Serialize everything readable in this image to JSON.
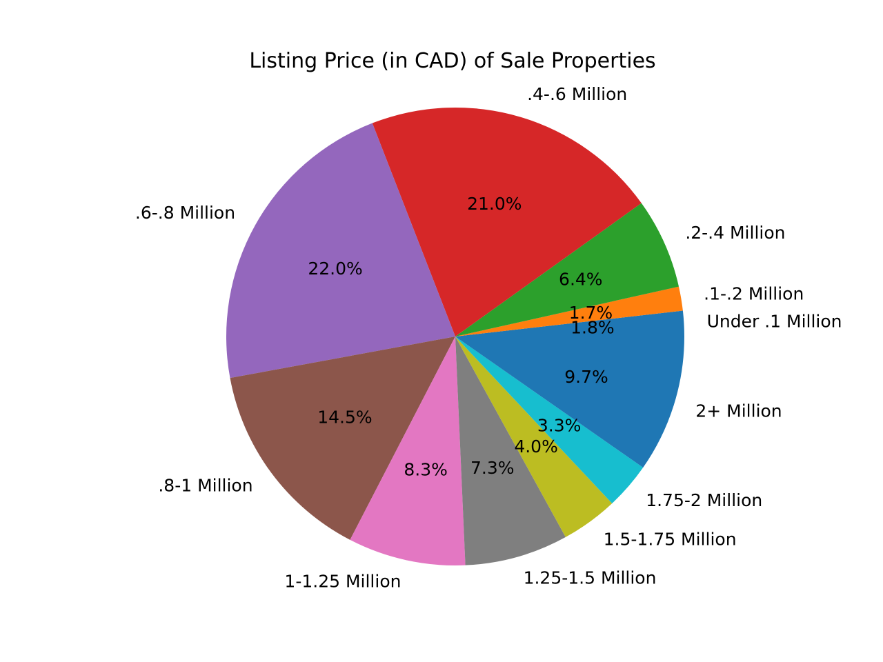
{
  "chart_data": {
    "type": "pie",
    "title": "Listing Price (in CAD) of Sale Properties",
    "start_angle_deg": 0,
    "direction": "counterclockwise",
    "slices": [
      {
        "label": "Under .1 Million",
        "value": 1.8,
        "pct_text": "1.8%",
        "color": "#1f77b4"
      },
      {
        "label": ".1-.2 Million",
        "value": 1.7,
        "pct_text": "1.7%",
        "color": "#ff7f0e"
      },
      {
        "label": ".2-.4 Million",
        "value": 6.4,
        "pct_text": "6.4%",
        "color": "#2ca02c"
      },
      {
        "label": ".4-.6 Million",
        "value": 21.0,
        "pct_text": "21.0%",
        "color": "#d62728"
      },
      {
        "label": ".6-.8 Million",
        "value": 22.0,
        "pct_text": "22.0%",
        "color": "#9467bd"
      },
      {
        "label": ".8-1 Million",
        "value": 14.5,
        "pct_text": "14.5%",
        "color": "#8c564b"
      },
      {
        "label": "1-1.25 Million",
        "value": 8.3,
        "pct_text": "8.3%",
        "color": "#e377c2"
      },
      {
        "label": "1.25-1.5 Million",
        "value": 7.3,
        "pct_text": "7.3%",
        "color": "#7f7f7f"
      },
      {
        "label": "1.5-1.75 Million",
        "value": 4.0,
        "pct_text": "4.0%",
        "color": "#bcbd22"
      },
      {
        "label": "1.75-2 Million",
        "value": 3.3,
        "pct_text": "3.3%",
        "color": "#17becf"
      },
      {
        "label": "2+ Million",
        "value": 9.7,
        "pct_text": "9.7%",
        "color": "#1f77b4"
      }
    ]
  }
}
